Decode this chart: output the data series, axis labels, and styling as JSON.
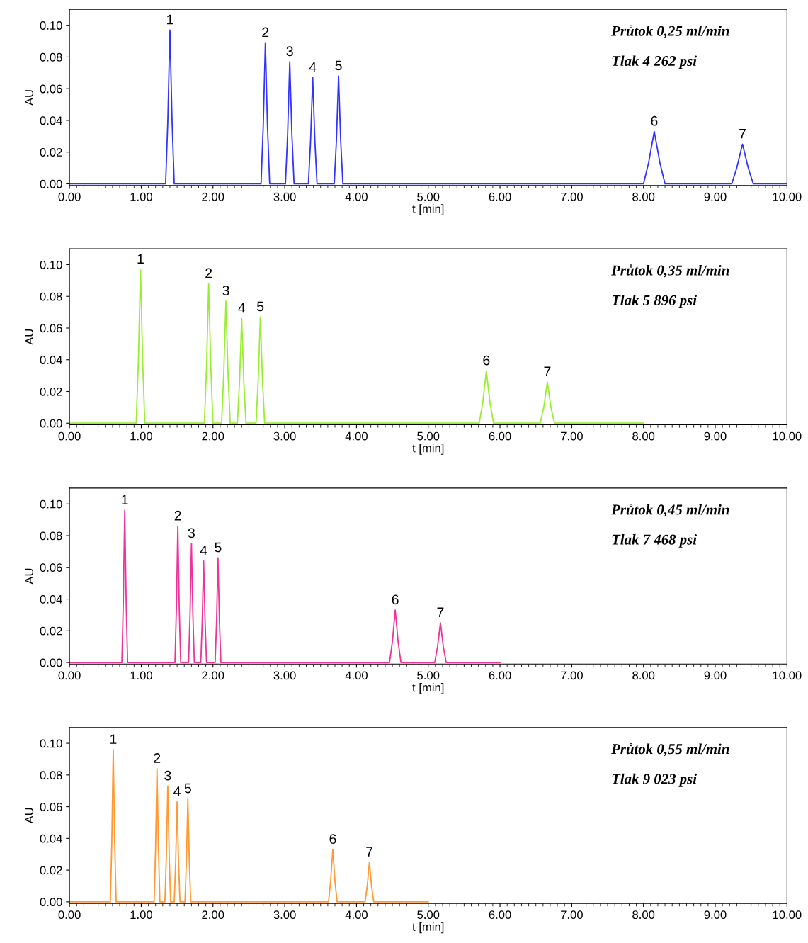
{
  "chart_data": [
    {
      "type": "line",
      "xlabel": "t [min]",
      "ylabel": "AU",
      "xlim": [
        0,
        10
      ],
      "ylim": [
        -0.001,
        0.11
      ],
      "grid": false,
      "legend": false,
      "marker": "none",
      "line_style": "solid",
      "xticks": [
        {
          "value": 0,
          "label": "0.00"
        },
        {
          "value": 1,
          "label": "1.00"
        },
        {
          "value": 2,
          "label": "2.00"
        },
        {
          "value": 3,
          "label": "3.00"
        },
        {
          "value": 4,
          "label": "4.00"
        },
        {
          "value": 5,
          "label": "5.00"
        },
        {
          "value": 6,
          "label": "6.00"
        },
        {
          "value": 7,
          "label": "7.00"
        },
        {
          "value": 8,
          "label": "8.00"
        },
        {
          "value": 9,
          "label": "9.00"
        },
        {
          "value": 10,
          "label": "10.00"
        }
      ],
      "yticks": [
        {
          "value": 0,
          "label": "0.00"
        },
        {
          "value": 0.02,
          "label": "0.02"
        },
        {
          "value": 0.04,
          "label": "0.04"
        },
        {
          "value": 0.06,
          "label": "0.06"
        },
        {
          "value": 0.08,
          "label": "0.08"
        },
        {
          "value": 0.1,
          "label": "0.10"
        }
      ],
      "series": [
        {
          "color": "#3333ff",
          "x": [
            0,
            1.34,
            1.37,
            1.4,
            1.43,
            1.46,
            2.67,
            2.7,
            2.73,
            2.76,
            2.79,
            3.01,
            3.04,
            3.07,
            3.1,
            3.13,
            3.33,
            3.36,
            3.39,
            3.42,
            3.45,
            3.69,
            3.72,
            3.75,
            3.78,
            3.81,
            8.0,
            8.07,
            8.15,
            8.23,
            8.3,
            9.23,
            9.3,
            9.38,
            9.46,
            9.53,
            10
          ],
          "values": [
            0,
            0,
            0.039,
            0.097,
            0.039,
            0,
            0,
            0.036,
            0.089,
            0.036,
            0,
            0,
            0.031,
            0.077,
            0.031,
            0,
            0,
            0.027,
            0.067,
            0.027,
            0,
            0,
            0.027,
            0.068,
            0.027,
            0,
            0,
            0.013,
            0.033,
            0.013,
            0,
            0,
            0.01,
            0.025,
            0.01,
            0,
            0
          ]
        }
      ],
      "annotations": [
        "Průtok 0,25 ml/min",
        "Tlak 4 262 psi",
        {
          "text": "1",
          "x": 1.4,
          "y": 0.097
        },
        {
          "text": "2",
          "x": 2.73,
          "y": 0.089
        },
        {
          "text": "3",
          "x": 3.07,
          "y": 0.077
        },
        {
          "text": "4",
          "x": 3.39,
          "y": 0.067
        },
        {
          "text": "5",
          "x": 3.75,
          "y": 0.068
        },
        {
          "text": "6",
          "x": 8.15,
          "y": 0.033
        },
        {
          "text": "7",
          "x": 9.38,
          "y": 0.025
        }
      ]
    },
    {
      "type": "line",
      "xlabel": "t [min]",
      "ylabel": "AU",
      "xlim": [
        0,
        10
      ],
      "ylim": [
        -0.001,
        0.11
      ],
      "grid": false,
      "legend": false,
      "marker": "none",
      "line_style": "solid",
      "xticks": [
        {
          "value": 0,
          "label": "0.00"
        },
        {
          "value": 1,
          "label": "1.00"
        },
        {
          "value": 2,
          "label": "2.00"
        },
        {
          "value": 3,
          "label": "3.00"
        },
        {
          "value": 4,
          "label": "4.00"
        },
        {
          "value": 5,
          "label": "5.00"
        },
        {
          "value": 6,
          "label": "6.00"
        },
        {
          "value": 7,
          "label": "7.00"
        },
        {
          "value": 8,
          "label": "8.00"
        },
        {
          "value": 9,
          "label": "9.00"
        },
        {
          "value": 10,
          "label": "10.00"
        }
      ],
      "yticks": [
        {
          "value": 0,
          "label": "0.00"
        },
        {
          "value": 0.02,
          "label": "0.02"
        },
        {
          "value": 0.04,
          "label": "0.04"
        },
        {
          "value": 0.06,
          "label": "0.06"
        },
        {
          "value": 0.08,
          "label": "0.08"
        },
        {
          "value": 0.1,
          "label": "0.10"
        }
      ],
      "series": [
        {
          "color": "#99ee33",
          "x": [
            0,
            0.93,
            0.96,
            0.99,
            1.02,
            1.05,
            1.88,
            1.91,
            1.94,
            1.97,
            2.0,
            2.12,
            2.15,
            2.18,
            2.21,
            2.24,
            2.34,
            2.37,
            2.4,
            2.43,
            2.46,
            2.6,
            2.63,
            2.66,
            2.69,
            2.72,
            5.71,
            5.76,
            5.81,
            5.86,
            5.91,
            6.56,
            6.61,
            6.66,
            6.71,
            6.76,
            8.0
          ],
          "values": [
            0,
            0,
            0.039,
            0.097,
            0.039,
            0,
            0,
            0.035,
            0.088,
            0.035,
            0,
            0,
            0.031,
            0.077,
            0.031,
            0,
            0,
            0.026,
            0.066,
            0.026,
            0,
            0,
            0.027,
            0.067,
            0.027,
            0,
            0,
            0.013,
            0.033,
            0.013,
            0,
            0,
            0.01,
            0.026,
            0.01,
            0,
            0
          ]
        }
      ],
      "annotations": [
        "Průtok 0,35 ml/min",
        "Tlak 5 896 psi",
        {
          "text": "1",
          "x": 0.99,
          "y": 0.097
        },
        {
          "text": "2",
          "x": 1.94,
          "y": 0.088
        },
        {
          "text": "3",
          "x": 2.18,
          "y": 0.077
        },
        {
          "text": "4",
          "x": 2.4,
          "y": 0.066
        },
        {
          "text": "5",
          "x": 2.66,
          "y": 0.067
        },
        {
          "text": "6",
          "x": 5.81,
          "y": 0.033
        },
        {
          "text": "7",
          "x": 6.66,
          "y": 0.026
        }
      ]
    },
    {
      "type": "line",
      "xlabel": "t [min]",
      "ylabel": "AU",
      "xlim": [
        0,
        10
      ],
      "ylim": [
        -0.001,
        0.11
      ],
      "grid": false,
      "legend": false,
      "marker": "none",
      "line_style": "solid",
      "xticks": [
        {
          "value": 0,
          "label": "0.00"
        },
        {
          "value": 1,
          "label": "1.00"
        },
        {
          "value": 2,
          "label": "2.00"
        },
        {
          "value": 3,
          "label": "3.00"
        },
        {
          "value": 4,
          "label": "4.00"
        },
        {
          "value": 5,
          "label": "5.00"
        },
        {
          "value": 6,
          "label": "6.00"
        },
        {
          "value": 7,
          "label": "7.00"
        },
        {
          "value": 8,
          "label": "8.00"
        },
        {
          "value": 9,
          "label": "9.00"
        },
        {
          "value": 10,
          "label": "10.00"
        }
      ],
      "yticks": [
        {
          "value": 0,
          "label": "0.00"
        },
        {
          "value": 0.02,
          "label": "0.02"
        },
        {
          "value": 0.04,
          "label": "0.04"
        },
        {
          "value": 0.06,
          "label": "0.06"
        },
        {
          "value": 0.08,
          "label": "0.08"
        },
        {
          "value": 0.1,
          "label": "0.10"
        }
      ],
      "series": [
        {
          "color": "#ee3399",
          "x": [
            0,
            0.73,
            0.75,
            0.77,
            0.79,
            0.81,
            1.47,
            1.49,
            1.51,
            1.53,
            1.55,
            1.66,
            1.68,
            1.7,
            1.72,
            1.74,
            1.83,
            1.85,
            1.87,
            1.89,
            1.91,
            2.03,
            2.05,
            2.07,
            2.09,
            2.11,
            4.46,
            4.5,
            4.54,
            4.58,
            4.62,
            5.09,
            5.13,
            5.17,
            5.21,
            5.25,
            6.0
          ],
          "values": [
            0,
            0,
            0.038,
            0.096,
            0.038,
            0,
            0,
            0.034,
            0.086,
            0.034,
            0,
            0,
            0.03,
            0.075,
            0.03,
            0,
            0,
            0.026,
            0.064,
            0.026,
            0,
            0,
            0.026,
            0.066,
            0.026,
            0,
            0,
            0.013,
            0.033,
            0.013,
            0,
            0,
            0.01,
            0.025,
            0.01,
            0,
            0
          ]
        }
      ],
      "annotations": [
        "Průtok 0,45 ml/min",
        "Tlak 7 468 psi",
        {
          "text": "1",
          "x": 0.77,
          "y": 0.096
        },
        {
          "text": "2",
          "x": 1.51,
          "y": 0.086
        },
        {
          "text": "3",
          "x": 1.7,
          "y": 0.075
        },
        {
          "text": "4",
          "x": 1.87,
          "y": 0.064
        },
        {
          "text": "5",
          "x": 2.07,
          "y": 0.066
        },
        {
          "text": "6",
          "x": 4.54,
          "y": 0.033
        },
        {
          "text": "7",
          "x": 5.17,
          "y": 0.025
        }
      ]
    },
    {
      "type": "line",
      "xlabel": "t [min]",
      "ylabel": "AU",
      "xlim": [
        0,
        10
      ],
      "ylim": [
        -0.001,
        0.11
      ],
      "grid": false,
      "legend": false,
      "marker": "none",
      "line_style": "solid",
      "xticks": [
        {
          "value": 0,
          "label": "0.00"
        },
        {
          "value": 1,
          "label": "1.00"
        },
        {
          "value": 2,
          "label": "2.00"
        },
        {
          "value": 3,
          "label": "3.00"
        },
        {
          "value": 4,
          "label": "4.00"
        },
        {
          "value": 5,
          "label": "5.00"
        },
        {
          "value": 6,
          "label": "6.00"
        },
        {
          "value": 7,
          "label": "7.00"
        },
        {
          "value": 8,
          "label": "8.00"
        },
        {
          "value": 9,
          "label": "9.00"
        },
        {
          "value": 10,
          "label": "10.00"
        }
      ],
      "yticks": [
        {
          "value": 0,
          "label": "0.00"
        },
        {
          "value": 0.02,
          "label": "0.02"
        },
        {
          "value": 0.04,
          "label": "0.04"
        },
        {
          "value": 0.06,
          "label": "0.06"
        },
        {
          "value": 0.08,
          "label": "0.08"
        },
        {
          "value": 0.1,
          "label": "0.10"
        }
      ],
      "series": [
        {
          "color": "#ff9933",
          "x": [
            0,
            0.57,
            0.59,
            0.61,
            0.63,
            0.65,
            1.18,
            1.2,
            1.22,
            1.24,
            1.26,
            1.33,
            1.35,
            1.37,
            1.39,
            1.41,
            1.46,
            1.48,
            1.5,
            1.52,
            1.54,
            1.61,
            1.63,
            1.65,
            1.67,
            1.69,
            3.61,
            3.64,
            3.67,
            3.7,
            3.73,
            4.12,
            4.15,
            4.18,
            4.21,
            4.24,
            5.0
          ],
          "values": [
            0,
            0,
            0.038,
            0.096,
            0.038,
            0,
            0,
            0.034,
            0.084,
            0.034,
            0,
            0,
            0.029,
            0.073,
            0.029,
            0,
            0,
            0.025,
            0.063,
            0.025,
            0,
            0,
            0.026,
            0.065,
            0.026,
            0,
            0,
            0.013,
            0.033,
            0.013,
            0,
            0,
            0.01,
            0.025,
            0.01,
            0,
            0
          ]
        }
      ],
      "annotations": [
        "Průtok 0,55 ml/min",
        "Tlak 9 023 psi",
        {
          "text": "1",
          "x": 0.61,
          "y": 0.096
        },
        {
          "text": "2",
          "x": 1.22,
          "y": 0.084
        },
        {
          "text": "3",
          "x": 1.37,
          "y": 0.073
        },
        {
          "text": "4",
          "x": 1.5,
          "y": 0.063
        },
        {
          "text": "5",
          "x": 1.65,
          "y": 0.065
        },
        {
          "text": "6",
          "x": 3.67,
          "y": 0.033
        },
        {
          "text": "7",
          "x": 4.18,
          "y": 0.025
        }
      ]
    }
  ]
}
